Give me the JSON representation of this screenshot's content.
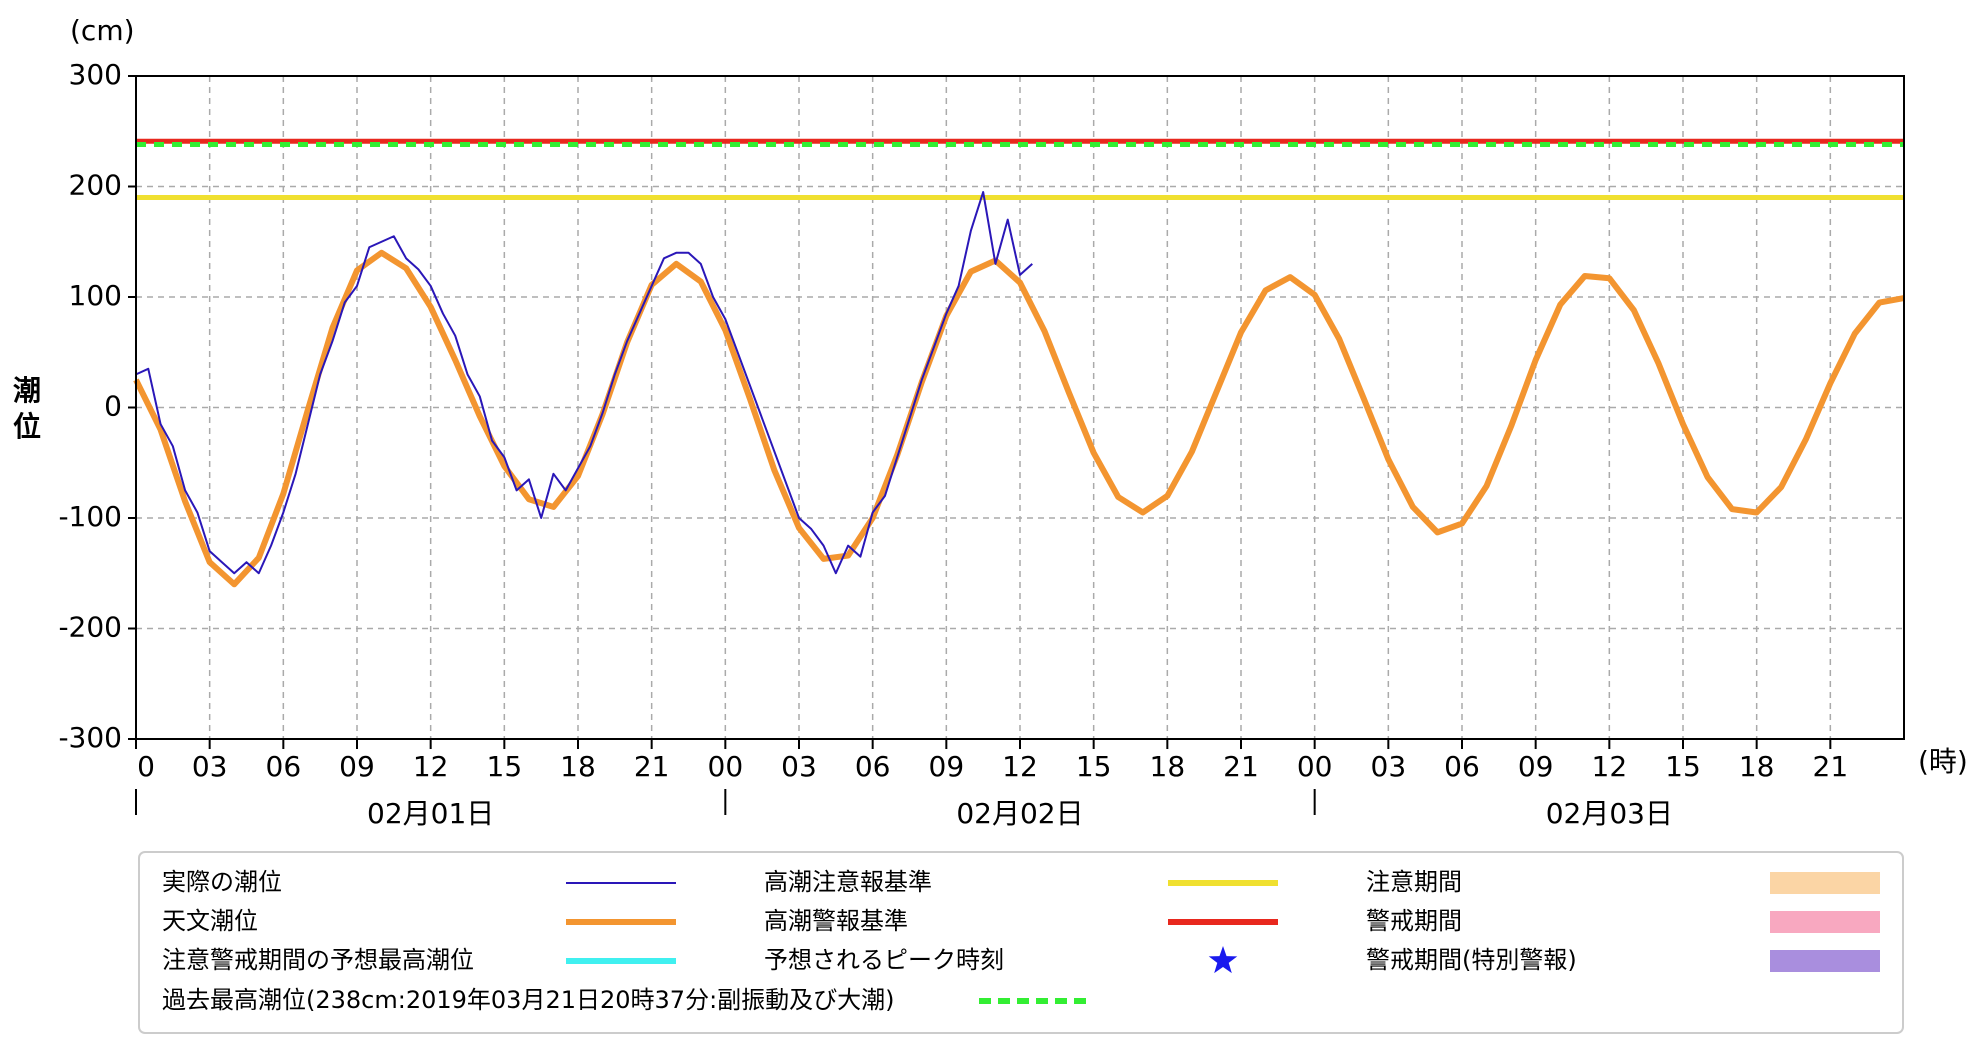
{
  "chart_data": {
    "type": "line",
    "y_unit": "(cm)",
    "x_unit": "(時)",
    "ylabel": "潮位",
    "ylim": [
      -300,
      300
    ],
    "yticks": [
      -300,
      -200,
      -100,
      0,
      100,
      200,
      300
    ],
    "xlim": [
      0,
      72
    ],
    "xticks": [
      {
        "value": 0,
        "label": "0"
      },
      {
        "value": 3,
        "label": "03"
      },
      {
        "value": 6,
        "label": "06"
      },
      {
        "value": 9,
        "label": "09"
      },
      {
        "value": 12,
        "label": "12"
      },
      {
        "value": 15,
        "label": "15"
      },
      {
        "value": 18,
        "label": "18"
      },
      {
        "value": 21,
        "label": "21"
      },
      {
        "value": 24,
        "label": "00"
      },
      {
        "value": 27,
        "label": "03"
      },
      {
        "value": 30,
        "label": "06"
      },
      {
        "value": 33,
        "label": "09"
      },
      {
        "value": 36,
        "label": "12"
      },
      {
        "value": 39,
        "label": "15"
      },
      {
        "value": 42,
        "label": "18"
      },
      {
        "value": 45,
        "label": "21"
      },
      {
        "value": 48,
        "label": "00"
      },
      {
        "value": 51,
        "label": "03"
      },
      {
        "value": 54,
        "label": "06"
      },
      {
        "value": 57,
        "label": "09"
      },
      {
        "value": 60,
        "label": "12"
      },
      {
        "value": 63,
        "label": "15"
      },
      {
        "value": 66,
        "label": "18"
      },
      {
        "value": 69,
        "label": "21"
      }
    ],
    "days": [
      "02月01日",
      "02月02日",
      "02月03日"
    ],
    "grid": true,
    "series": [
      {
        "name": "実際の潮位",
        "color": "#2a17b8",
        "x": [
          0,
          0.5,
          1,
          1.5,
          2,
          2.5,
          3,
          3.5,
          4,
          4.5,
          5,
          5.5,
          6,
          6.5,
          7,
          7.5,
          8,
          8.5,
          9,
          9.5,
          10,
          10.5,
          11,
          11.5,
          12,
          12.5,
          13,
          13.5,
          14,
          14.5,
          15,
          15.5,
          16,
          16.5,
          17,
          17.5,
          18,
          18.5,
          19,
          19.5,
          20,
          20.5,
          21,
          21.5,
          22,
          22.5,
          23,
          23.5,
          24,
          24.5,
          25,
          25.5,
          26,
          26.5,
          27,
          27.5,
          28,
          28.5,
          29,
          29.5,
          30,
          30.5,
          31,
          31.5,
          32,
          32.5,
          33,
          33.5,
          34,
          34.5,
          35,
          35.5,
          36,
          36.5
        ],
        "values": [
          30,
          35,
          -15,
          -35,
          -75,
          -95,
          -130,
          -140,
          -150,
          -140,
          -150,
          -125,
          -95,
          -60,
          -15,
          30,
          60,
          95,
          110,
          145,
          150,
          155,
          135,
          125,
          110,
          85,
          65,
          30,
          10,
          -30,
          -45,
          -75,
          -65,
          -100,
          -60,
          -75,
          -55,
          -35,
          -5,
          30,
          60,
          85,
          110,
          135,
          140,
          140,
          130,
          100,
          80,
          50,
          20,
          -10,
          -40,
          -70,
          -100,
          -110,
          -125,
          -150,
          -125,
          -135,
          -95,
          -80,
          -45,
          -10,
          25,
          55,
          85,
          110,
          160,
          195,
          130,
          170,
          120,
          130
        ]
      },
      {
        "name": "天文潮位",
        "color": "#f39530",
        "x": [
          0,
          1,
          2,
          3,
          4,
          5,
          6,
          7,
          8,
          9,
          10,
          11,
          12,
          13,
          14,
          15,
          16,
          17,
          18,
          19,
          20,
          21,
          22,
          23,
          24,
          25,
          26,
          27,
          28,
          29,
          30,
          31,
          32,
          33,
          34,
          35,
          36,
          37,
          38,
          39,
          40,
          41,
          42,
          43,
          44,
          45,
          46,
          47,
          48,
          49,
          50,
          51,
          52,
          53,
          54,
          55,
          56,
          57,
          58,
          59,
          60,
          61,
          62,
          63,
          64,
          65,
          66,
          67,
          68,
          69,
          70,
          71,
          72
        ],
        "values": [
          25,
          -20,
          -85,
          -140,
          -160,
          -136,
          -78,
          -2,
          72,
          124,
          140,
          126,
          91,
          43,
          -8,
          -53,
          -83,
          -90,
          -62,
          -6,
          59,
          111,
          130,
          114,
          70,
          8,
          -57,
          -109,
          -137,
          -134,
          -100,
          -43,
          23,
          83,
          123,
          133,
          113,
          69,
          13,
          -41,
          -81,
          -95,
          -80,
          -40,
          14,
          68,
          106,
          118,
          102,
          62,
          8,
          -47,
          -90,
          -113,
          -105,
          -71,
          -17,
          43,
          93,
          119,
          117,
          88,
          40,
          -15,
          -63,
          -92,
          -95,
          -72,
          -29,
          22,
          67,
          95,
          99
        ]
      }
    ],
    "thresholds": [
      {
        "name": "高潮注意報基準",
        "color": "#f0e030",
        "value": 190
      },
      {
        "name": "高潮警報基準",
        "color": "#e8281e",
        "value": 241
      }
    ],
    "record": {
      "name": "過去最高潮位(238cm:2019年03月21日20時37分:副振動及び大潮)",
      "color": "#33ee33",
      "value": 238
    },
    "legend_extra": [
      {
        "name": "注意警戒期間の予想最高潮位",
        "color": "#40f0f0"
      },
      {
        "name": "予想されるピーク時刻",
        "color": "#1a1aee"
      },
      {
        "name": "注意期間",
        "color": "#fbd5a5"
      },
      {
        "name": "警戒期間",
        "color": "#f8a8c0"
      },
      {
        "name": "警戒期間(特別警報)",
        "color": "#a98ede"
      }
    ]
  }
}
